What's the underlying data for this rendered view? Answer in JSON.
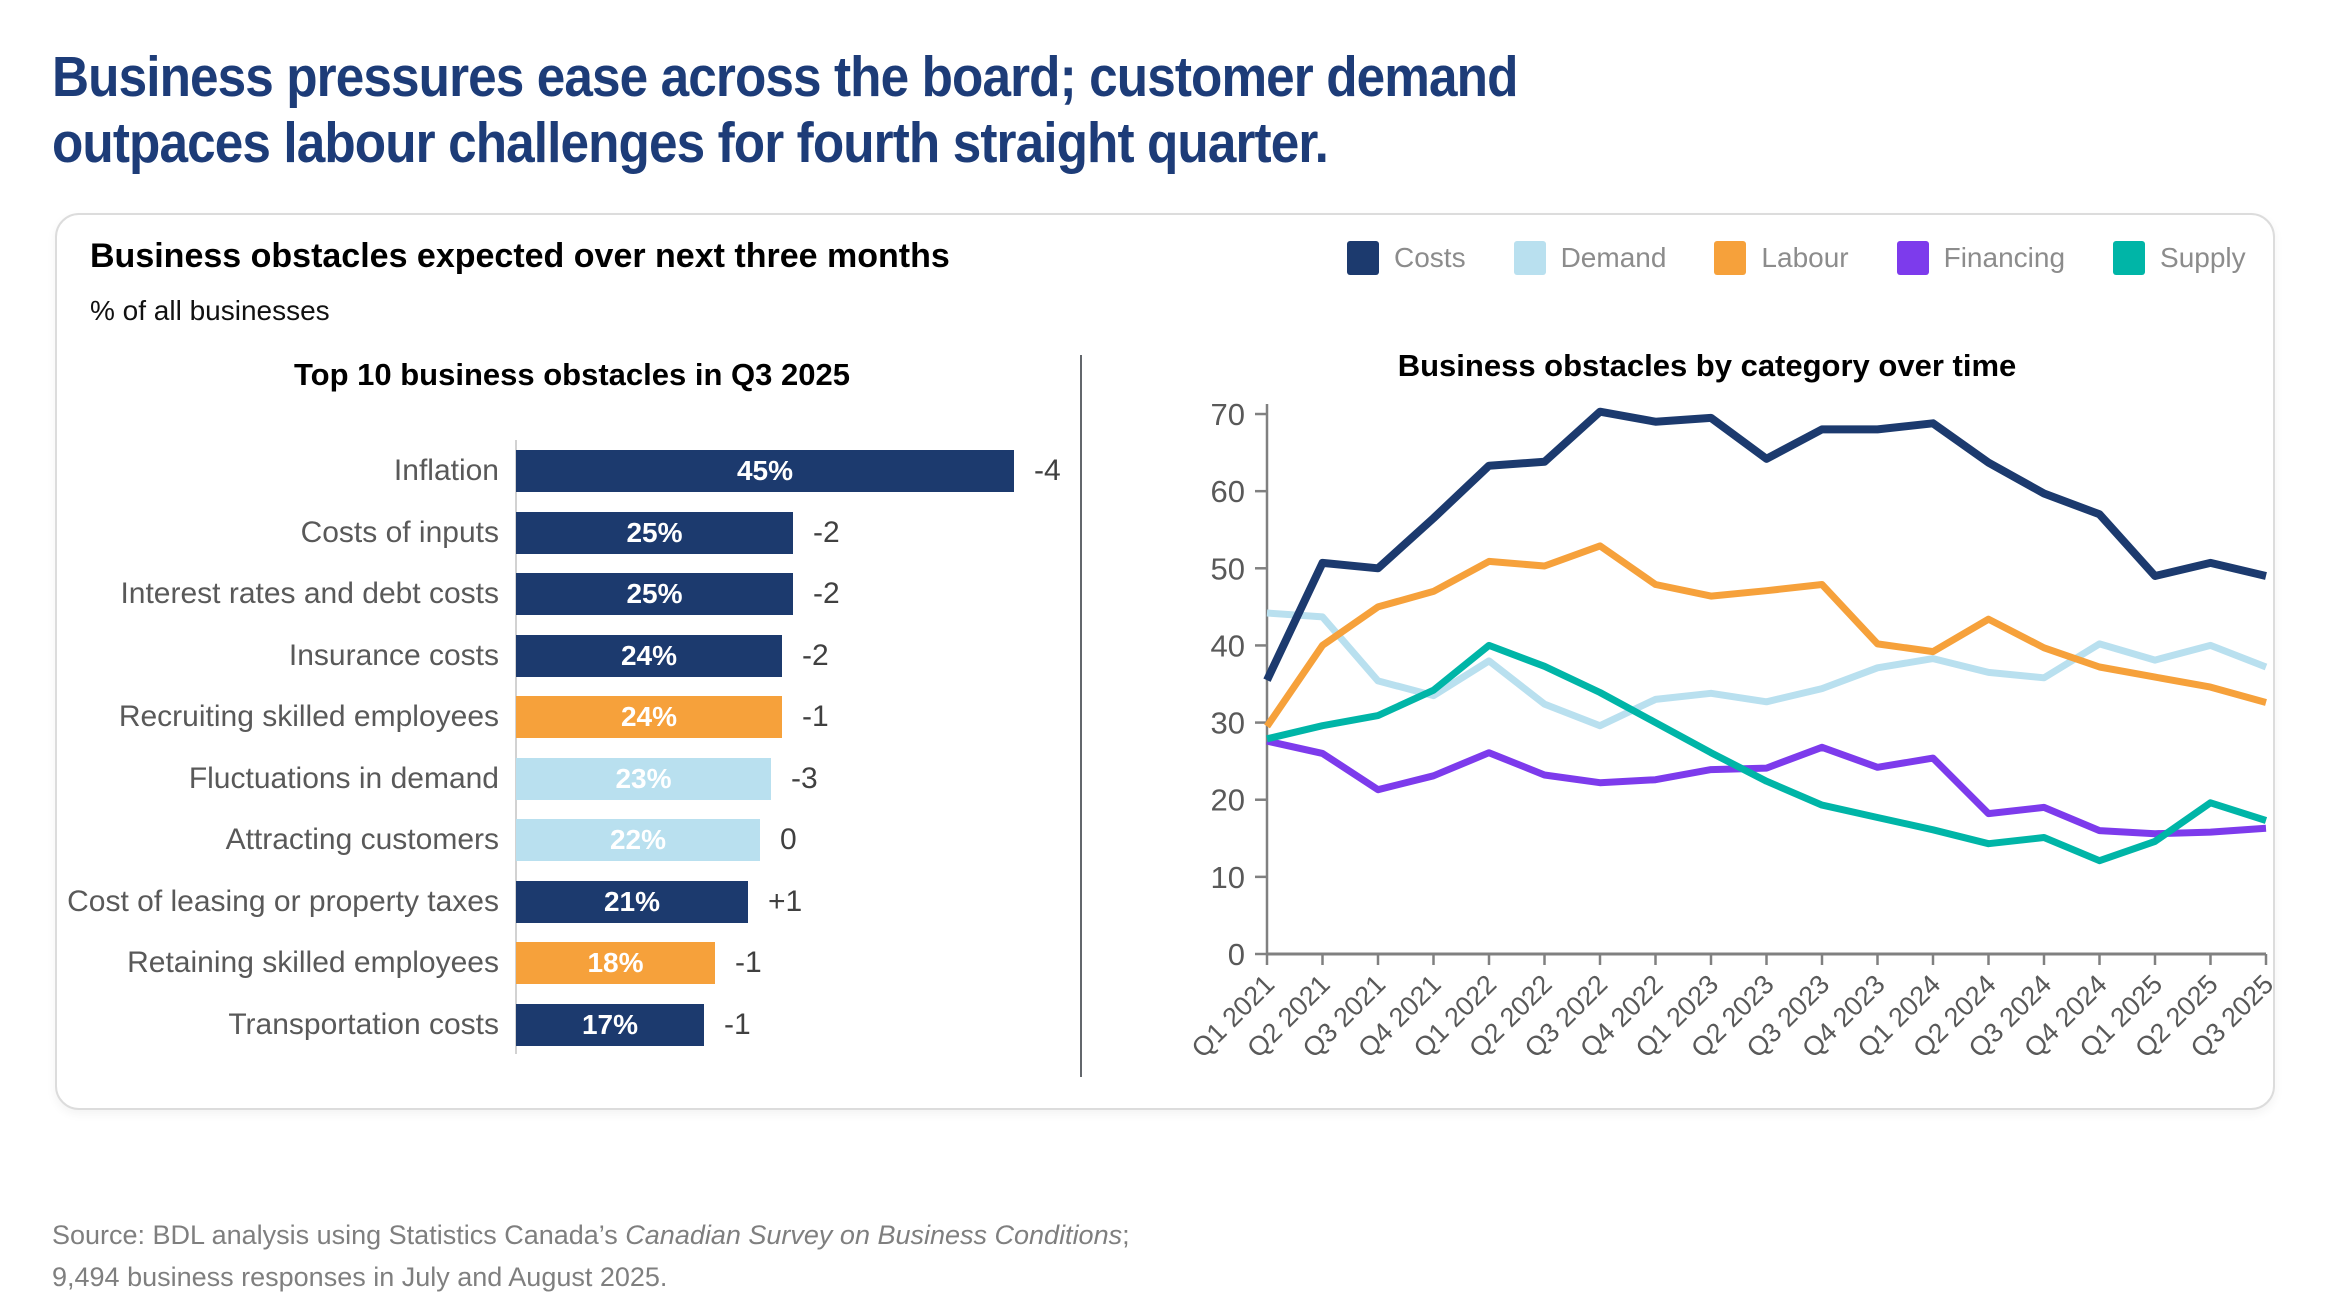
{
  "headline": {
    "line1": "Business pressures ease across the board; customer demand",
    "line2": "outpaces labour challenges for fourth straight quarter."
  },
  "card": {
    "title": "Business obstacles expected over next three months",
    "subtitle": "% of all businesses",
    "legend": [
      {
        "key": "costs",
        "label": "Costs"
      },
      {
        "key": "demand",
        "label": "Demand"
      },
      {
        "key": "labour",
        "label": "Labour"
      },
      {
        "key": "financing",
        "label": "Financing"
      },
      {
        "key": "supply",
        "label": "Supply"
      }
    ]
  },
  "palette": {
    "costs": "#1c3a6e",
    "demand": "#b9e0ef",
    "labour": "#f6a13b",
    "financing": "#7d3bec",
    "supply": "#00b5a7",
    "headline": "#1d3c78",
    "axis_gray": "#808080",
    "label_gray": "#595959"
  },
  "chart_data": [
    {
      "type": "bar",
      "title": "Top 10 business obstacles in Q3 2025",
      "unit": "% of all businesses",
      "rows": [
        {
          "label": "Inflation",
          "value": 45,
          "display": "45%",
          "change": "-4",
          "category": "costs"
        },
        {
          "label": "Costs of inputs",
          "value": 25,
          "display": "25%",
          "change": "-2",
          "category": "costs"
        },
        {
          "label": "Interest rates and debt costs",
          "value": 25,
          "display": "25%",
          "change": "-2",
          "category": "costs"
        },
        {
          "label": "Insurance costs",
          "value": 24,
          "display": "24%",
          "change": "-2",
          "category": "costs"
        },
        {
          "label": "Recruiting skilled employees",
          "value": 24,
          "display": "24%",
          "change": "-1",
          "category": "labour"
        },
        {
          "label": "Fluctuations in demand",
          "value": 23,
          "display": "23%",
          "change": "-3",
          "category": "demand"
        },
        {
          "label": "Attracting customers",
          "value": 22,
          "display": "22%",
          "change": "0",
          "category": "demand"
        },
        {
          "label": "Cost of leasing or property taxes",
          "value": 21,
          "display": "21%",
          "change": "+1",
          "category": "costs"
        },
        {
          "label": "Retaining skilled employees",
          "value": 18,
          "display": "18%",
          "change": "-1",
          "category": "labour"
        },
        {
          "label": "Transportation costs",
          "value": 17,
          "display": "17%",
          "change": "-1",
          "category": "costs"
        }
      ]
    },
    {
      "type": "line",
      "title": "Business obstacles by category over time",
      "x": [
        "Q1 2021",
        "Q2 2021",
        "Q3 2021",
        "Q4 2021",
        "Q1 2022",
        "Q2 2022",
        "Q3 2022",
        "Q4 2022",
        "Q1 2023",
        "Q2 2023",
        "Q3 2023",
        "Q4 2023",
        "Q1 2024",
        "Q2 2024",
        "Q3 2024",
        "Q4 2024",
        "Q1 2025",
        "Q2 2025",
        "Q3 2025"
      ],
      "ylim": [
        0,
        70
      ],
      "yticks": [
        0,
        10,
        20,
        30,
        40,
        50,
        60,
        70
      ],
      "grid": false,
      "legend_position": "top-right",
      "series": [
        {
          "name": "Costs",
          "key": "costs",
          "values": [
            35.5,
            50.7,
            50,
            56.5,
            63.3,
            63.8,
            70.3,
            69,
            69.5,
            64.2,
            68,
            68,
            68.8,
            63.7,
            59.7,
            57,
            49,
            50.7,
            49
          ]
        },
        {
          "name": "Demand",
          "key": "demand",
          "values": [
            44.2,
            43.7,
            35.4,
            33.5,
            38,
            32.4,
            29.6,
            33,
            33.8,
            32.7,
            34.4,
            37.1,
            38.3,
            36.5,
            35.8,
            40.2,
            38.1,
            40,
            37.2
          ]
        },
        {
          "name": "Labour",
          "key": "labour",
          "values": [
            29.5,
            40,
            45,
            47,
            50.9,
            50.3,
            52.9,
            47.9,
            46.4,
            47.1,
            47.9,
            40.2,
            39.2,
            43.4,
            39.7,
            37.2,
            35.9,
            34.6,
            32.6
          ]
        },
        {
          "name": "Financing",
          "key": "financing",
          "values": [
            27.6,
            26,
            21.3,
            23.1,
            26.1,
            23.2,
            22.2,
            22.6,
            23.9,
            24.1,
            26.8,
            24.2,
            25.4,
            18.2,
            19,
            16,
            15.6,
            15.8,
            16.3
          ]
        },
        {
          "name": "Supply",
          "key": "supply",
          "values": [
            27.9,
            29.6,
            30.9,
            34.2,
            40,
            37.3,
            33.9,
            30,
            26.1,
            22.4,
            19.3,
            17.7,
            16.1,
            14.3,
            15.1,
            12.1,
            14.6,
            19.6,
            17.3
          ]
        }
      ]
    }
  ],
  "source": {
    "prefix": "Source: BDL analysis using Statistics Canada’s ",
    "italic": "Canadian Survey on Business Conditions",
    "suffix": ";",
    "line2": "9,494 business responses in July and August 2025."
  }
}
